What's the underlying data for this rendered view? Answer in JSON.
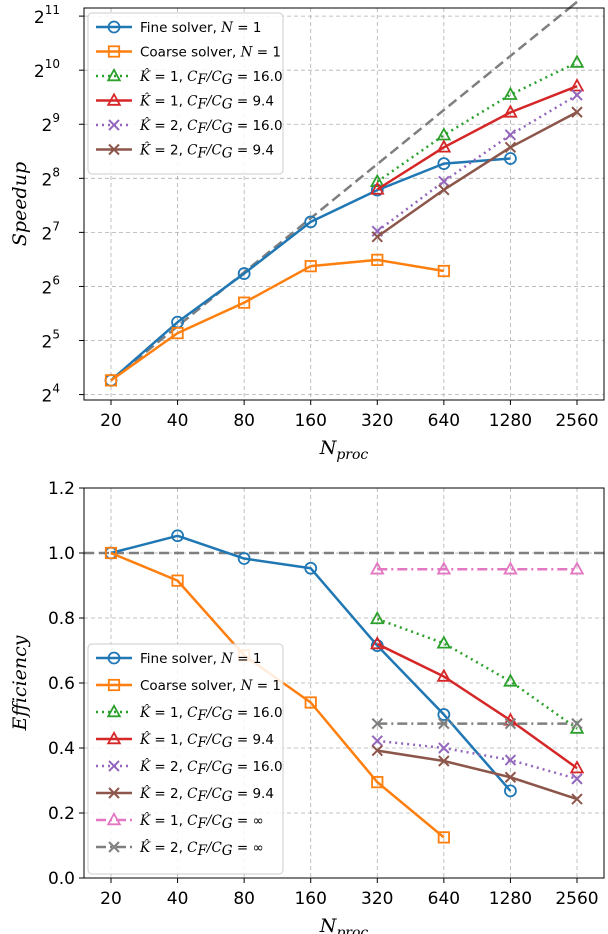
{
  "chart_data": [
    {
      "type": "line",
      "xlabel": "N_proc",
      "ylabel": "Speedup",
      "yscale": "log2",
      "ylim_exp": [
        3.9,
        11.15
      ],
      "ytick_exponents": [
        4,
        5,
        6,
        7,
        8,
        9,
        10,
        11
      ],
      "categories": [
        "20",
        "40",
        "80",
        "160",
        "320",
        "640",
        "1280",
        "2560"
      ],
      "grid": true,
      "legend_position": "top-left",
      "reference_line": {
        "values": [
          19.2,
          38.4,
          76.8,
          153.6,
          307.2,
          614.4,
          1228.8,
          2457.6
        ],
        "color": "#7f7f7f",
        "style": "dashed"
      },
      "series": [
        {
          "name": "Fine solver, N=1",
          "values": [
            19.2,
            40.5,
            75.5,
            146.5,
            220,
            309,
            330,
            null
          ],
          "color": "#1f77b4",
          "marker": "circle",
          "style": "solid"
        },
        {
          "name": "Coarse solver, N=1",
          "values": [
            19.2,
            35.2,
            52,
            83,
            90,
            78,
            null,
            null
          ],
          "color": "#ff7f0e",
          "marker": "square",
          "style": "solid"
        },
        {
          "name": "K=1, CF/CG=16.0",
          "values": [
            null,
            null,
            null,
            null,
            245,
            445,
            748,
            1130
          ],
          "color": "#2ca02c",
          "marker": "triangle",
          "style": "dotted"
        },
        {
          "name": "K=1, CF/CG=9.4",
          "values": [
            null,
            null,
            null,
            null,
            222,
            381,
            596,
            834
          ],
          "color": "#d62728",
          "marker": "triangle",
          "style": "solid"
        },
        {
          "name": "K=2, CF/CG=16.0",
          "values": [
            null,
            null,
            null,
            null,
            130,
            246,
            447,
            744
          ],
          "color": "#9467bd",
          "marker": "x",
          "style": "dotted"
        },
        {
          "name": "K=2, CF/CG=9.4",
          "values": [
            null,
            null,
            null,
            null,
            121,
            221,
            381,
            598
          ],
          "color": "#8c564b",
          "marker": "x",
          "style": "solid"
        }
      ]
    },
    {
      "type": "line",
      "xlabel": "N_proc",
      "ylabel": "Efficiency",
      "ylim": [
        0.0,
        1.2
      ],
      "yticks": [
        "0.0",
        "0.2",
        "0.4",
        "0.6",
        "0.8",
        "1.0",
        "1.2"
      ],
      "categories": [
        "20",
        "40",
        "80",
        "160",
        "320",
        "640",
        "1280",
        "2560"
      ],
      "grid": true,
      "legend_position": "bottom-left",
      "reference_line": {
        "values": [
          1.0,
          1.0,
          1.0,
          1.0,
          1.0,
          1.0,
          1.0,
          1.0
        ],
        "color": "#7f7f7f",
        "style": "dashed"
      },
      "series": [
        {
          "name": "Fine solver, N=1",
          "values": [
            1.0,
            1.053,
            0.983,
            0.953,
            0.715,
            0.503,
            0.268,
            null
          ],
          "color": "#1f77b4",
          "marker": "circle",
          "style": "solid"
        },
        {
          "name": "Coarse solver, N=1",
          "values": [
            1.0,
            0.915,
            0.685,
            0.54,
            0.295,
            0.125,
            null,
            null
          ],
          "color": "#ff7f0e",
          "marker": "square",
          "style": "solid"
        },
        {
          "name": "K=1, CF/CG=16.0",
          "values": [
            null,
            null,
            null,
            null,
            0.797,
            0.722,
            0.605,
            0.46
          ],
          "color": "#2ca02c",
          "marker": "triangle",
          "style": "dotted"
        },
        {
          "name": "K=1, CF/CG=9.4",
          "values": [
            null,
            null,
            null,
            null,
            0.72,
            0.62,
            0.485,
            0.338
          ],
          "color": "#d62728",
          "marker": "triangle",
          "style": "solid"
        },
        {
          "name": "K=2, CF/CG=16.0",
          "values": [
            null,
            null,
            null,
            null,
            0.422,
            0.4,
            0.363,
            0.305
          ],
          "color": "#9467bd",
          "marker": "x",
          "style": "dotted"
        },
        {
          "name": "K=2, CF/CG=9.4",
          "values": [
            null,
            null,
            null,
            null,
            0.392,
            0.36,
            0.31,
            0.243
          ],
          "color": "#8c564b",
          "marker": "x",
          "style": "solid"
        },
        {
          "name": "K=1, CF/CG=∞",
          "values": [
            null,
            null,
            null,
            null,
            0.95,
            0.95,
            0.95,
            0.95
          ],
          "color": "#e377c2",
          "marker": "triangle",
          "style": "dashdot"
        },
        {
          "name": "K=2, CF/CG=∞",
          "values": [
            null,
            null,
            null,
            null,
            0.475,
            0.475,
            0.475,
            0.475
          ],
          "color": "#7f7f7f",
          "marker": "x",
          "style": "dashdot"
        }
      ]
    }
  ]
}
